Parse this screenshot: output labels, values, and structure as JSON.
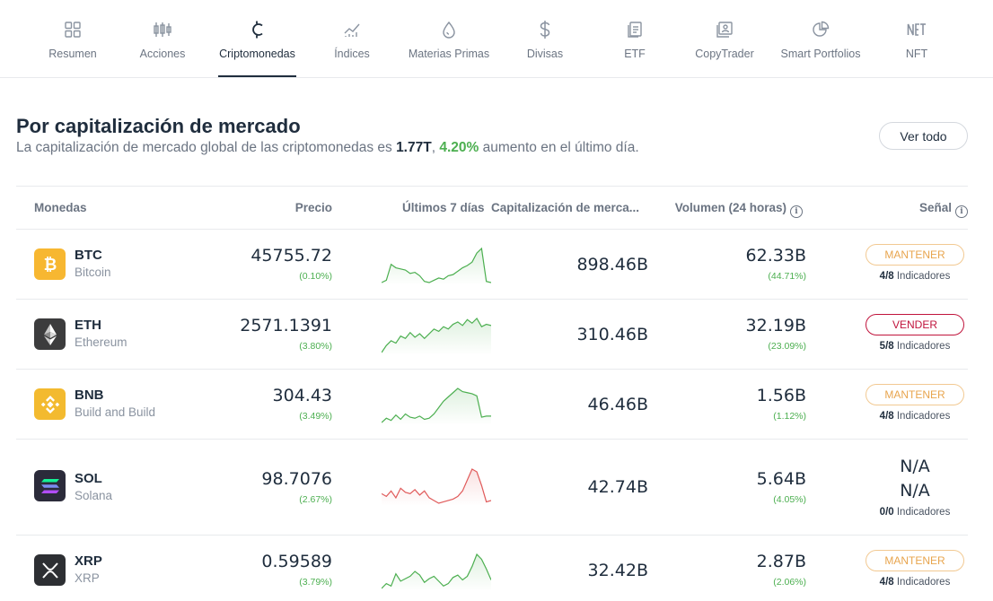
{
  "nav": {
    "tabs": [
      {
        "label": "Resumen",
        "icon": "grid-icon"
      },
      {
        "label": "Acciones",
        "icon": "candlestick-icon"
      },
      {
        "label": "Criptomonedas",
        "icon": "crypto-icon",
        "active": true
      },
      {
        "label": "Índices",
        "icon": "chart-line-icon"
      },
      {
        "label": "Materias Primas",
        "icon": "drop-icon"
      },
      {
        "label": "Divisas",
        "icon": "dollar-icon"
      },
      {
        "label": "ETF",
        "icon": "document-icon"
      },
      {
        "label": "CopyTrader",
        "icon": "user-chart-icon"
      },
      {
        "label": "Smart Portfolios",
        "icon": "pie-chart-icon"
      },
      {
        "label": "NFT",
        "icon": "nft-icon"
      }
    ]
  },
  "header": {
    "title": "Por capitalización de mercado",
    "subtitle_prefix": "La capitalización de mercado global de las criptomonedas es ",
    "market_cap": "1.77T",
    "subtitle_sep": ", ",
    "change": "4.20%",
    "subtitle_suffix": " aumento en el último día.",
    "view_all": "Ver todo"
  },
  "table": {
    "columns": {
      "coins": "Monedas",
      "price": "Precio",
      "last7": "Últimos 7 días",
      "mcap": "Capitalización de merca...",
      "volume": "Volumen (24 horas)",
      "signal": "Señal"
    },
    "info_glyph": "i",
    "rows": [
      {
        "symbol": "BTC",
        "name": "Bitcoin",
        "icon": "bitcoin-icon",
        "icon_bg": "#f7b731",
        "price": "45755.72",
        "price_change": "(0.10%)",
        "mcap_num": "898.46",
        "mcap_unit": "B",
        "vol_num": "62.33",
        "vol_unit": "B",
        "vol_change": "(44.71%)",
        "signal": "MANTENER",
        "signal_type": "hold",
        "indicators_count": "4/8",
        "indicators_label": " Indicadores",
        "spark_color": "#4caf50",
        "spark": [
          2,
          4,
          18,
          15,
          14,
          13,
          10,
          11,
          8,
          3,
          2,
          4,
          6,
          5,
          8,
          9,
          12,
          15,
          17,
          20,
          28,
          32,
          3,
          2
        ]
      },
      {
        "symbol": "ETH",
        "name": "Ethereum",
        "icon": "ethereum-icon",
        "icon_bg": "#3c3c3d",
        "price": "2571.1391",
        "price_change": "(3.80%)",
        "mcap_num": "310.46",
        "mcap_unit": "B",
        "vol_num": "32.19",
        "vol_unit": "B",
        "vol_change": "(23.09%)",
        "signal": "VENDER",
        "signal_type": "sell",
        "indicators_count": "5/8",
        "indicators_label": " Indicadores",
        "spark_color": "#4caf50",
        "spark": [
          2,
          8,
          12,
          10,
          16,
          14,
          19,
          15,
          18,
          14,
          18,
          22,
          20,
          24,
          22,
          26,
          28,
          25,
          30,
          27,
          31,
          24,
          26,
          25
        ]
      },
      {
        "symbol": "BNB",
        "name": "Build and Build",
        "icon": "bnb-icon",
        "icon_bg": "#f3ba2f",
        "price": "304.43",
        "price_change": "(3.49%)",
        "mcap_num": "46.46",
        "mcap_unit": "B",
        "vol_num": "1.56",
        "vol_unit": "B",
        "vol_change": "(1.12%)",
        "signal": "MANTENER",
        "signal_type": "hold",
        "indicators_count": "4/8",
        "indicators_label": " Indicadores",
        "spark_color": "#4caf50",
        "spark": [
          2,
          6,
          4,
          9,
          5,
          10,
          7,
          6,
          8,
          5,
          6,
          10,
          16,
          22,
          26,
          30,
          34,
          31,
          30,
          29,
          27,
          7,
          8,
          8
        ]
      },
      {
        "symbol": "SOL",
        "name": "Solana",
        "icon": "solana-icon",
        "icon_bg": "#2b2b3a",
        "price": "98.7076",
        "price_change": "(2.67%)",
        "na_1": "N/A",
        "na_2": "N/A",
        "mcap_num": "42.74",
        "mcap_unit": "B",
        "vol_num": "5.64",
        "vol_unit": "B",
        "vol_change": "(4.05%)",
        "signal": "",
        "signal_type": "none",
        "indicators_count": "0/0",
        "indicators_label": " Indicadores",
        "spark_color": "#e05a5a",
        "spark": [
          12,
          10,
          14,
          9,
          16,
          13,
          12,
          15,
          11,
          14,
          9,
          7,
          5,
          6,
          7,
          8,
          10,
          14,
          22,
          30,
          28,
          18,
          6,
          7
        ]
      },
      {
        "symbol": "XRP",
        "name": "XRP",
        "icon": "xrp-icon",
        "icon_bg": "#2d2f33",
        "price": "0.59589",
        "price_change": "(3.79%)",
        "mcap_num": "32.42",
        "mcap_unit": "B",
        "vol_num": "2.87",
        "vol_unit": "B",
        "vol_change": "(2.06%)",
        "signal": "MANTENER",
        "signal_type": "hold",
        "indicators_count": "4/8",
        "indicators_label": " Indicadores",
        "spark_color": "#4caf50",
        "spark": [
          2,
          6,
          4,
          14,
          8,
          10,
          12,
          16,
          13,
          7,
          10,
          12,
          8,
          4,
          6,
          11,
          13,
          9,
          12,
          20,
          30,
          26,
          18,
          9
        ]
      }
    ]
  }
}
